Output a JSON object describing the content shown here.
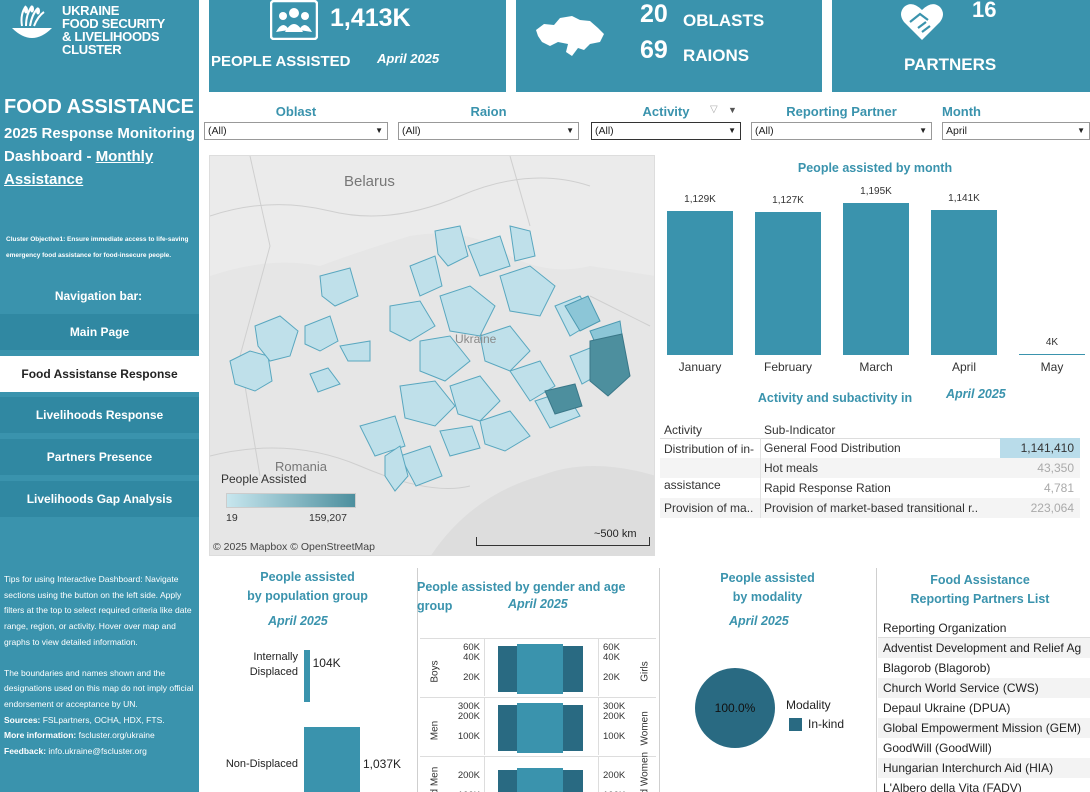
{
  "logo": {
    "line1": "UKRAINE",
    "line2": "FOOD SECURITY",
    "line3": "& LIVELIHOODS CLUSTER"
  },
  "sidebar": {
    "title": "FOOD ASSISTANCE",
    "subtitle_line1": "2025 Response Monitoring",
    "subtitle_line2": "Dashboard - ",
    "subtitle_link1": "Monthly",
    "subtitle_link2": "Assistance",
    "objective": "Cluster Objective1: Ensure immediate access to life-saving emergency food assistance for food-insecure people.",
    "nav_label": "Navigation bar:",
    "nav": [
      "Main Page",
      "Food Assistanse Response",
      "Livelihoods Response",
      "Partners Presence",
      "Livelihoods Gap Analysis"
    ],
    "tips_p1": "Tips for using Interactive Dashboard: Navigate sections using the button on the left side. Apply filters at the top to select required criteria like date range, region, or activity. Hover over map and graphs to view detailed information.",
    "tips_p2": "The boundaries and names shown and the designations used on this map do not imply official endorsement or acceptance by UN.",
    "sources_label": "Sources:",
    "sources": " FSLpartners, OCHA, HDX, FTS.",
    "more_label": "More information:",
    "more": " fscluster.org/ukraine",
    "feedback_label": "Feedback:",
    "feedback": " info.ukraine@fscluster.org"
  },
  "kpis": {
    "people_value": "1,413K",
    "people_label": "PEOPLE ASSISTED",
    "people_date": "April 2025",
    "oblasts_value": "20",
    "oblasts_label": "OBLASTS",
    "raions_value": "69",
    "raions_label": "RAIONS",
    "partners_value": "16",
    "partners_label": "PARTNERS"
  },
  "filters": [
    {
      "label": "Oblast",
      "value": "(All)"
    },
    {
      "label": "Raion",
      "value": "(All)"
    },
    {
      "label": "Activity",
      "value": "(All)"
    },
    {
      "label": "Reporting Partner",
      "value": "(All)"
    },
    {
      "label": "Month",
      "value": "April"
    }
  ],
  "map": {
    "label_belarus": "Belarus",
    "label_ukraine": "Ukraine",
    "label_romania": "Romania",
    "legend_title": "People Assisted",
    "legend_min": "19",
    "legend_max": "159,207",
    "attribution": "© 2025 Mapbox  © OpenStreetMap",
    "scale": "~500 km"
  },
  "colors": {
    "brand": "#3a93ad",
    "nav_dark": "#3088a2",
    "bar": "#3a93ad",
    "pie": "#296a82"
  },
  "month_chart": {
    "title": "People assisted by month",
    "chart_data": {
      "type": "bar",
      "categories": [
        "January",
        "February",
        "March",
        "April",
        "May"
      ],
      "values": [
        1129,
        1127,
        1195,
        1141,
        4
      ],
      "value_labels": [
        "1,129K",
        "1,127K",
        "1,195K",
        "1,141K",
        "4K"
      ]
    }
  },
  "activity_table": {
    "title": "Activity and subactivity in",
    "date": "April 2025",
    "col1": "Activity",
    "col2": "Sub-Indicator",
    "group1": "Distribution of in-kind food assistance",
    "rows": [
      {
        "sub": "General Food Distribution",
        "value": "1,141,410"
      },
      {
        "sub": "Hot meals",
        "value": "43,350"
      },
      {
        "sub": "Rapid Response Ration",
        "value": "4,781"
      }
    ],
    "group2": "Provision of ma..",
    "group2_sub": "Provision of market-based transitional r..",
    "group2_value": "223,064"
  },
  "population": {
    "title1": "People assisted",
    "title2": "by population group",
    "date": "April 2025",
    "chart_data": {
      "type": "bar",
      "categories": [
        "Internally Displaced",
        "Non-Displaced"
      ],
      "values": [
        104,
        1037
      ],
      "value_labels": [
        "104K",
        "1,037K"
      ]
    }
  },
  "gender": {
    "title": "People assisted by gender and age group",
    "date": "April 2025",
    "rows": [
      {
        "left": "Boys",
        "right": "Girls",
        "ticks_left": [
          "60K",
          "40K",
          "20K"
        ],
        "ticks_right": [
          "60K",
          "40K",
          "20K"
        ]
      },
      {
        "left": "Men",
        "right": "Women",
        "ticks_left": [
          "300K",
          "200K",
          "100K"
        ],
        "ticks_right": [
          "300K",
          "200K",
          "100K"
        ]
      },
      {
        "left": "Old Men",
        "right": "Old Women",
        "ticks_left": [
          "200K",
          "100K"
        ],
        "ticks_right": [
          "200K",
          "100K"
        ]
      }
    ]
  },
  "modality": {
    "title1": "People assisted",
    "title2": "by modality",
    "date": "April 2025",
    "pie_label": "100.0%",
    "legend_title": "Modality",
    "legend_item": "In-kind"
  },
  "partners_list": {
    "title1": "Food Assistance",
    "title2": "Reporting Partners List",
    "header": "Reporting Organization",
    "items": [
      "Adventist Development and Relief Ag",
      "Blagorob (Blagorob)",
      "Church World Service (CWS)",
      "Depaul Ukraine (DPUA)",
      "Global Empowerment Mission (GEM)",
      "GoodWill (GoodWill)",
      "Hungarian Interchurch Aid (HIA)",
      "L'Albero della Vita (FADV)"
    ]
  }
}
